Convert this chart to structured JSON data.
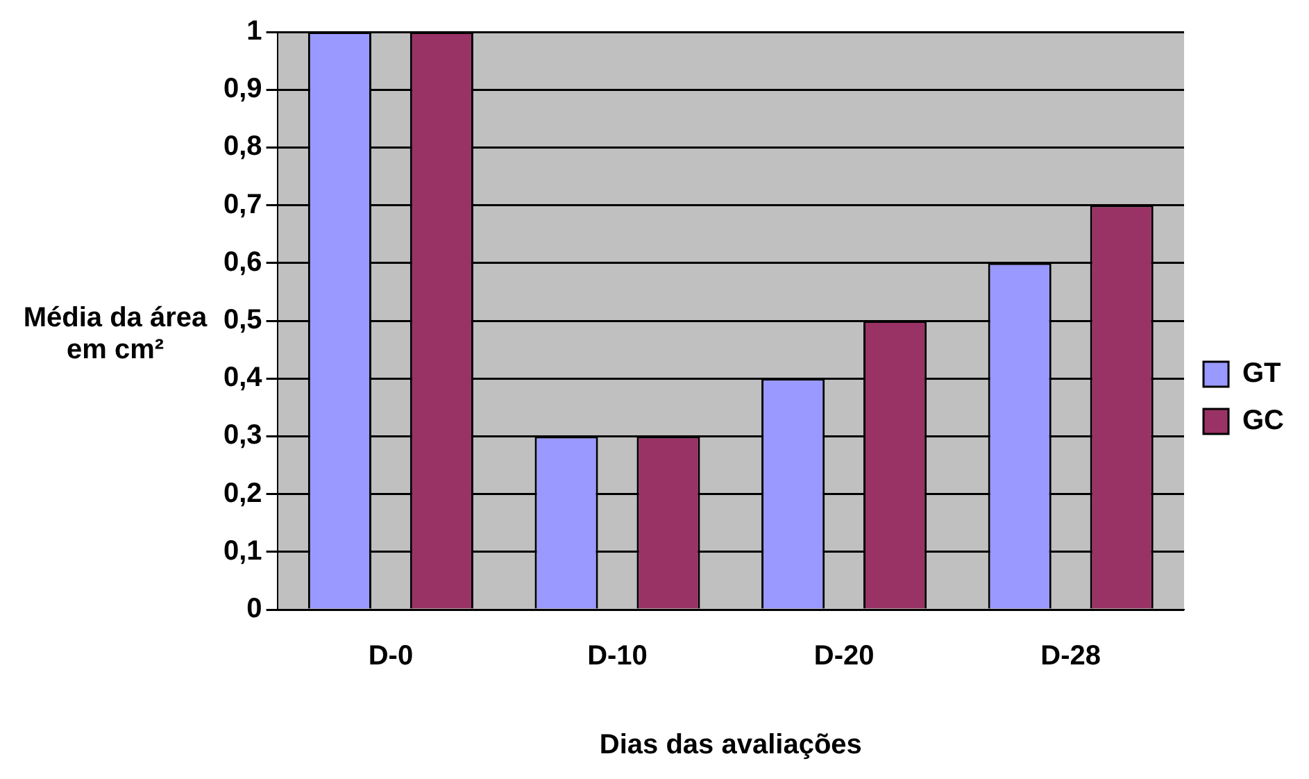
{
  "chart_data": {
    "type": "bar",
    "xlabel": "Dias das avaliações",
    "ylabel": "Média da área em cm²",
    "categories": [
      "D-0",
      "D-10",
      "D-20",
      "D-28"
    ],
    "series": [
      {
        "name": "GT",
        "color": "#9999ff",
        "values": [
          1,
          0.3,
          0.4,
          0.6
        ]
      },
      {
        "name": "GC",
        "color": "#993366",
        "values": [
          1,
          0.3,
          0.5,
          0.7
        ]
      }
    ],
    "ylim": [
      0,
      1
    ],
    "yticks": [
      0,
      {
        "value": 0.1,
        "label": "0,1"
      },
      {
        "value": 0.2,
        "label": "0,2"
      },
      {
        "value": 0.3,
        "label": "0,3"
      },
      {
        "value": 0.4,
        "label": "0,4"
      },
      {
        "value": 0.5,
        "label": "0,5"
      },
      {
        "value": 0.6,
        "label": "0,6"
      },
      {
        "value": 0.7,
        "label": "0,7"
      },
      {
        "value": 0.8,
        "label": "0,8"
      },
      {
        "value": 0.9,
        "label": "0,9"
      },
      1
    ],
    "grid": "y",
    "legend": "right"
  }
}
